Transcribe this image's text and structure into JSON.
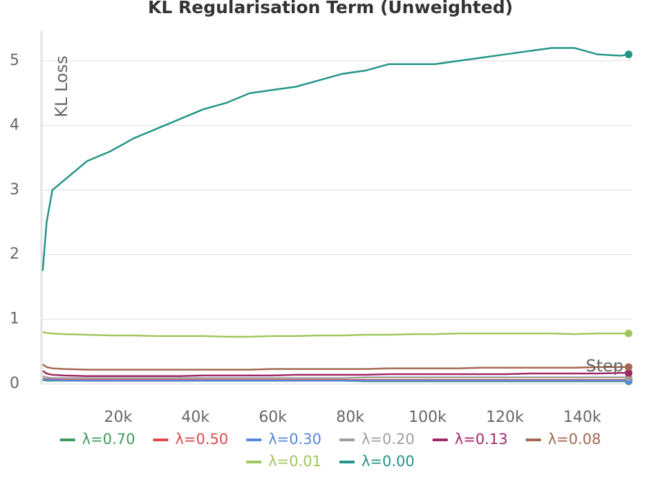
{
  "chart_data": {
    "type": "line",
    "title": "KL Regularisation Term (Unweighted)",
    "xlabel": "Step",
    "ylabel": "KL Loss",
    "x": [
      500,
      1500,
      3000,
      6000,
      12000,
      18000,
      24000,
      30000,
      36000,
      42000,
      48000,
      54000,
      60000,
      66000,
      72000,
      78000,
      84000,
      90000,
      96000,
      102000,
      108000,
      114000,
      120000,
      126000,
      132000,
      138000,
      144000,
      150000,
      152000
    ],
    "xlim": [
      0,
      153000
    ],
    "xticks": [
      {
        "value": 20000,
        "label": "20k"
      },
      {
        "value": 40000,
        "label": "40k"
      },
      {
        "value": 60000,
        "label": "60k"
      },
      {
        "value": 80000,
        "label": "80k"
      },
      {
        "value": 100000,
        "label": "100k"
      },
      {
        "value": 120000,
        "label": "120k"
      },
      {
        "value": 140000,
        "label": "140k"
      }
    ],
    "ylim": [
      0,
      5.3
    ],
    "yticks": [
      0,
      1,
      2,
      3,
      4,
      5
    ],
    "grid": true,
    "legend": "bottom",
    "series": [
      {
        "name": "λ=0.70",
        "color": "#3f9a5a",
        "values": [
          0.06,
          0.05,
          0.05,
          0.05,
          0.05,
          0.05,
          0.05,
          0.05,
          0.05,
          0.05,
          0.05,
          0.05,
          0.05,
          0.05,
          0.05,
          0.05,
          0.04,
          0.04,
          0.04,
          0.04,
          0.04,
          0.04,
          0.04,
          0.04,
          0.04,
          0.04,
          0.04,
          0.04,
          0.04
        ]
      },
      {
        "name": "λ=0.50",
        "color": "#e0474c",
        "values": [
          0.08,
          0.07,
          0.07,
          0.06,
          0.06,
          0.06,
          0.06,
          0.06,
          0.06,
          0.06,
          0.06,
          0.06,
          0.06,
          0.06,
          0.06,
          0.06,
          0.06,
          0.06,
          0.06,
          0.06,
          0.06,
          0.06,
          0.06,
          0.06,
          0.06,
          0.06,
          0.06,
          0.06,
          0.06
        ]
      },
      {
        "name": "λ=0.30",
        "color": "#5387dd",
        "values": [
          0.07,
          0.06,
          0.06,
          0.05,
          0.05,
          0.05,
          0.05,
          0.05,
          0.05,
          0.05,
          0.05,
          0.05,
          0.05,
          0.05,
          0.05,
          0.05,
          0.05,
          0.05,
          0.05,
          0.05,
          0.05,
          0.05,
          0.05,
          0.05,
          0.05,
          0.05,
          0.05,
          0.05,
          0.05
        ]
      },
      {
        "name": "λ=0.20",
        "color": "#9e9e9e",
        "values": [
          0.12,
          0.1,
          0.09,
          0.09,
          0.09,
          0.09,
          0.09,
          0.09,
          0.09,
          0.09,
          0.09,
          0.09,
          0.09,
          0.09,
          0.09,
          0.09,
          0.1,
          0.1,
          0.1,
          0.1,
          0.1,
          0.1,
          0.1,
          0.1,
          0.1,
          0.1,
          0.1,
          0.1,
          0.1
        ]
      },
      {
        "name": "λ=0.13",
        "color": "#a12864",
        "values": [
          0.2,
          0.16,
          0.14,
          0.13,
          0.12,
          0.12,
          0.12,
          0.12,
          0.12,
          0.13,
          0.13,
          0.13,
          0.13,
          0.14,
          0.14,
          0.14,
          0.14,
          0.15,
          0.15,
          0.15,
          0.15,
          0.15,
          0.15,
          0.16,
          0.16,
          0.16,
          0.16,
          0.17,
          0.17
        ]
      },
      {
        "name": "λ=0.08",
        "color": "#a46750",
        "values": [
          0.3,
          0.26,
          0.24,
          0.23,
          0.22,
          0.22,
          0.22,
          0.22,
          0.22,
          0.22,
          0.22,
          0.22,
          0.23,
          0.23,
          0.23,
          0.23,
          0.23,
          0.24,
          0.24,
          0.24,
          0.24,
          0.25,
          0.25,
          0.25,
          0.25,
          0.25,
          0.26,
          0.26,
          0.26
        ]
      },
      {
        "name": "λ=0.01",
        "color": "#a0c75c",
        "values": [
          0.8,
          0.79,
          0.78,
          0.77,
          0.76,
          0.75,
          0.75,
          0.74,
          0.74,
          0.74,
          0.73,
          0.73,
          0.74,
          0.74,
          0.75,
          0.75,
          0.76,
          0.76,
          0.77,
          0.77,
          0.78,
          0.78,
          0.78,
          0.78,
          0.78,
          0.77,
          0.78,
          0.78,
          0.78
        ]
      },
      {
        "name": "λ=0.00",
        "color": "#229487",
        "values": [
          1.75,
          2.5,
          3.0,
          3.15,
          3.45,
          3.6,
          3.8,
          3.95,
          4.1,
          4.25,
          4.35,
          4.5,
          4.55,
          4.6,
          4.7,
          4.8,
          4.85,
          4.95,
          4.95,
          4.95,
          5.0,
          5.05,
          5.1,
          5.15,
          5.2,
          5.2,
          5.1,
          5.08,
          5.1
        ]
      }
    ]
  }
}
